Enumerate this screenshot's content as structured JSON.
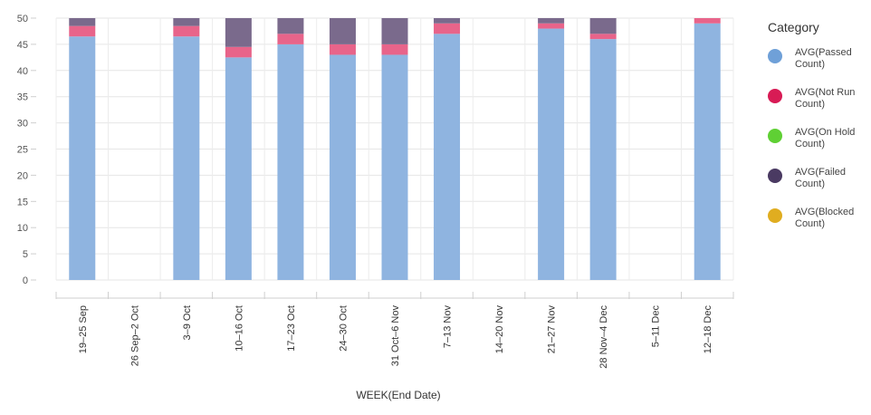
{
  "chart_data": {
    "type": "bar",
    "stacked": true,
    "title": "",
    "xlabel": "WEEK(End Date)",
    "ylabel": "",
    "ylim": [
      0,
      50
    ],
    "yticks": [
      0,
      5,
      10,
      15,
      20,
      25,
      30,
      35,
      40,
      45,
      50
    ],
    "categories": [
      "19–25 Sep",
      "26 Sep–2 Oct",
      "3–9 Oct",
      "10–16 Oct",
      "17–23 Oct",
      "24–30 Oct",
      "31 Oct–6 Nov",
      "7–13 Nov",
      "14–20 Nov",
      "21–27 Nov",
      "28 Nov–4 Dec",
      "5–11 Dec",
      "12–18 Dec"
    ],
    "series": [
      {
        "name": "AVG(Passed Count)",
        "color": "#8fb4e0",
        "values": [
          46.5,
          null,
          46.5,
          42.5,
          45,
          43,
          43,
          47,
          null,
          48,
          46,
          null,
          49
        ]
      },
      {
        "name": "AVG(Not Run Count)",
        "color": "#e8648a",
        "values": [
          2,
          null,
          2,
          2,
          2,
          2,
          2,
          2,
          null,
          1,
          1,
          null,
          1
        ]
      },
      {
        "name": "AVG(On Hold Count)",
        "color": "#5fd034",
        "values": [
          0,
          null,
          0,
          0,
          0,
          0,
          0,
          0,
          null,
          0,
          0,
          null,
          0
        ]
      },
      {
        "name": "AVG(Failed Count)",
        "color": "#7a6a8c",
        "values": [
          1.5,
          null,
          1.5,
          5.5,
          3,
          5,
          5,
          1,
          null,
          1,
          3,
          null,
          0
        ]
      },
      {
        "name": "AVG(Blocked Count)",
        "color": "#e0ad20",
        "values": [
          0,
          null,
          0,
          0,
          0,
          0,
          0,
          0,
          null,
          0,
          0,
          null,
          0
        ]
      }
    ],
    "legend_position": "right",
    "grid": true
  },
  "legend": {
    "title": "Category",
    "items": [
      {
        "label": "AVG(Passed Count)",
        "color": "#6fa0d8"
      },
      {
        "label": "AVG(Not Run Count)",
        "color": "#d81b55"
      },
      {
        "label": "AVG(On Hold Count)",
        "color": "#5fd034"
      },
      {
        "label": "AVG(Failed Count)",
        "color": "#4a3a62"
      },
      {
        "label": "AVG(Blocked Count)",
        "color": "#e0ad20"
      }
    ]
  }
}
